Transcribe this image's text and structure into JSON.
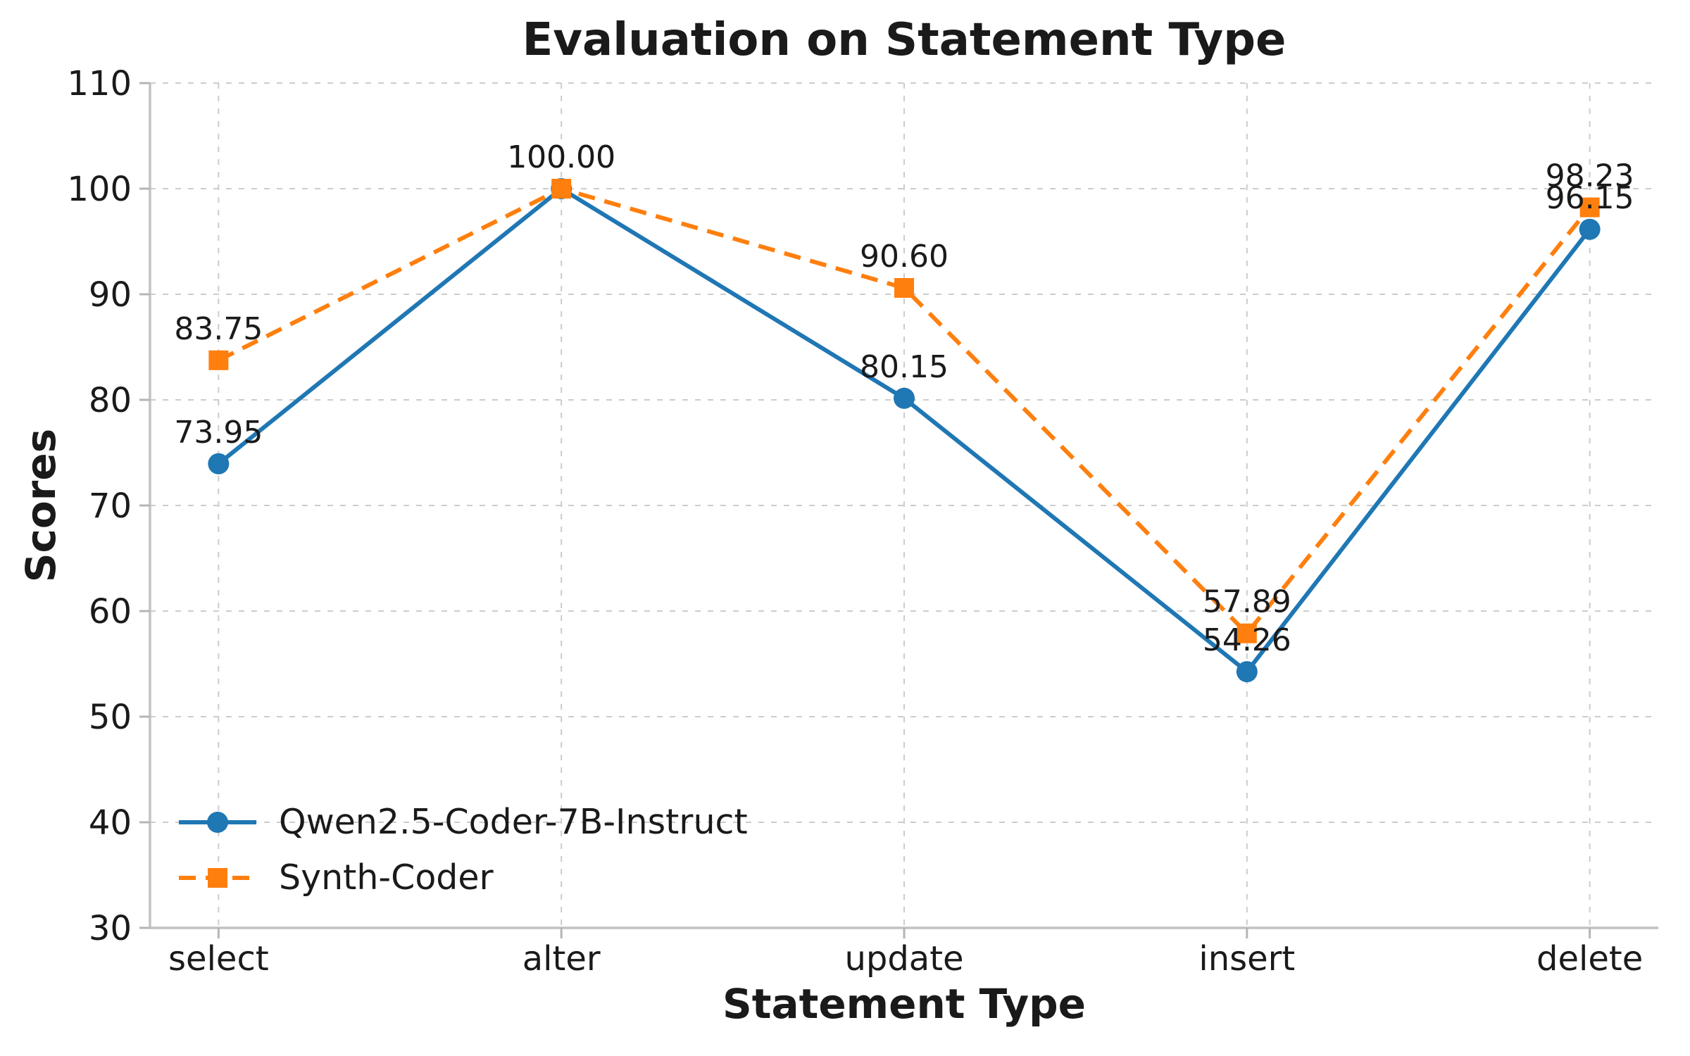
{
  "chart_data": {
    "type": "line",
    "title": "Evaluation on Statement Type",
    "xlabel": "Statement Type",
    "ylabel": "Scores",
    "categories": [
      "select",
      "alter",
      "update",
      "insert",
      "delete"
    ],
    "series": [
      {
        "name": "Qwen2.5-Coder-7B-Instruct",
        "values": [
          73.95,
          100.0,
          80.15,
          54.26,
          96.15
        ],
        "point_labels": [
          "73.95",
          "100.00",
          "80.15",
          "54.26",
          "96.15"
        ],
        "color": "#1f77b4",
        "linestyle": "solid",
        "marker": "circle"
      },
      {
        "name": "Synth-Coder",
        "values": [
          83.75,
          100.0,
          90.6,
          57.89,
          98.23
        ],
        "point_labels": [
          "83.75",
          "100.00",
          "90.60",
          "57.89",
          "98.23"
        ],
        "color": "#ff7f0e",
        "linestyle": "dashed",
        "marker": "square"
      }
    ],
    "ylim": [
      30,
      110
    ],
    "yticks": [
      "30",
      "40",
      "50",
      "60",
      "70",
      "80",
      "90",
      "100",
      "110"
    ],
    "grid": true,
    "grid_style": "dashed",
    "legend_position": "lower left",
    "colors": {
      "grid": "#cccccc",
      "spine": "#c2c2c2",
      "tick": "#b5b5b5",
      "text": "#1a1a1a"
    }
  }
}
